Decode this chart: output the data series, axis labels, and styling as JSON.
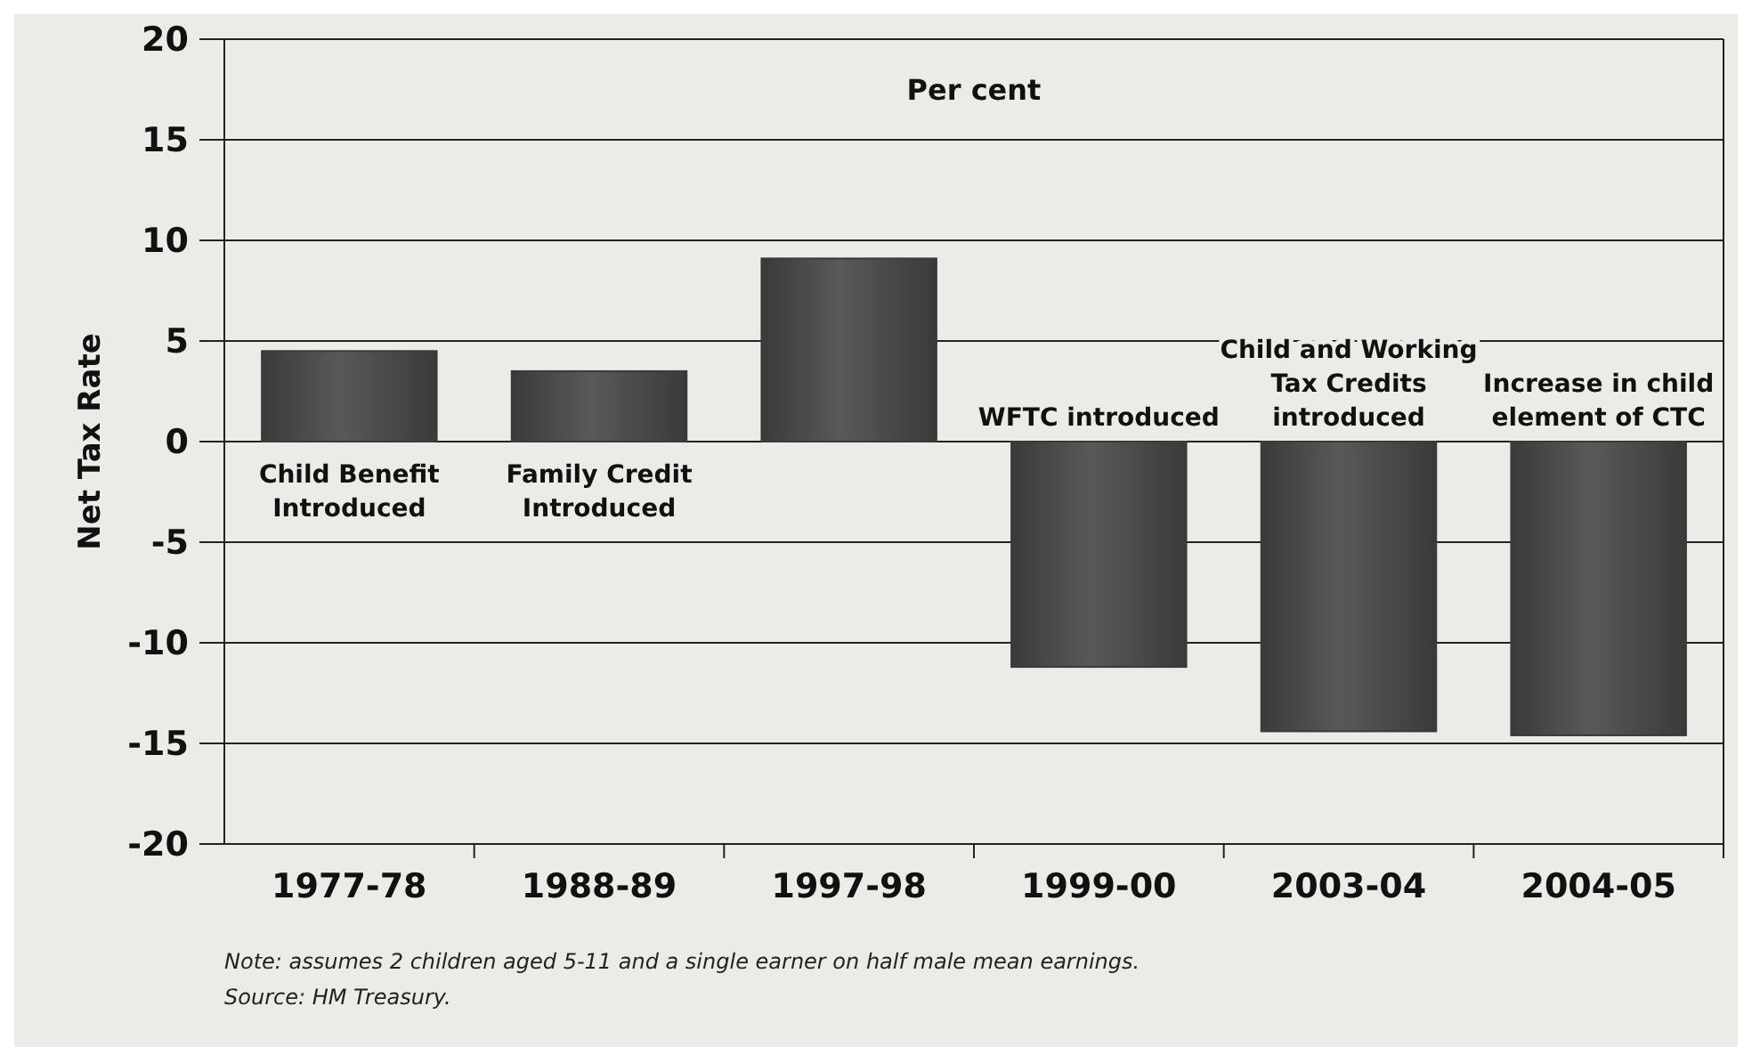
{
  "chart_data": {
    "type": "bar",
    "subtitle": "Per cent",
    "ylabel": "Net Tax Rate",
    "categories": [
      "1977-78",
      "1988-89",
      "1997-98",
      "1999-00",
      "2003-04",
      "2004-05"
    ],
    "values": [
      4.5,
      3.5,
      9.1,
      -11.2,
      -14.4,
      -14.6
    ],
    "color": "#3a3a3a",
    "ylim": [
      -20,
      20
    ],
    "yticks": [
      -20,
      -15,
      -10,
      -5,
      0,
      5,
      10,
      15,
      20
    ],
    "grid": "y",
    "annotations": [
      {
        "text": "Child Benefit Introduced",
        "x": "1977-78",
        "y": 0
      },
      {
        "text": "Family Credit Introduced",
        "x": "1988-89",
        "y": 0
      },
      {
        "text": "WFTC introduced",
        "x": "1999-00",
        "y": 0
      },
      {
        "text": "Child and Working Tax Credits introduced",
        "x": "2003-04",
        "y": 0
      },
      {
        "text": "Increase in child element of CTC",
        "x": "2004-05",
        "y": 0
      },
      "Note: assumes 2 children aged 5-11 and a single earner on half male mean earnings.",
      "Source: HM Treasury."
    ]
  }
}
